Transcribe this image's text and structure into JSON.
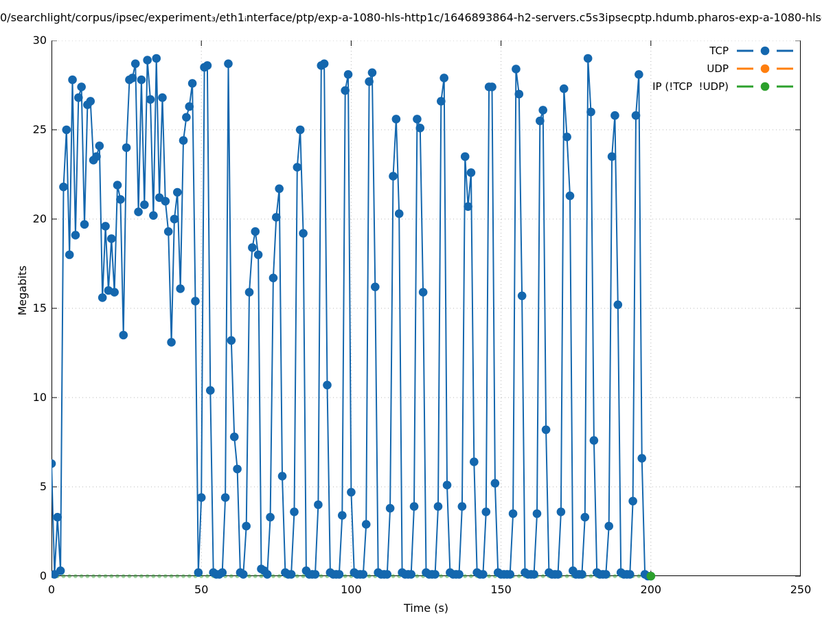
{
  "title": "0/searchlight/corpus/ipsec/experiment₃/eth1ᵢnterface/ptp/exp-a-1080-hls-http1c/1646893864-h2-servers.c5s3ipsecptp.hdumb.pharos-exp-a-1080-hls-",
  "axes": {
    "ylabel": "Megabits",
    "xlabel": "Time (s)",
    "yticks": [
      "0",
      "5",
      "10",
      "15",
      "20",
      "25",
      "30"
    ],
    "xticks": [
      "0",
      "50",
      "100",
      "150",
      "200",
      "250"
    ]
  },
  "legend": [
    {
      "label": "TCP",
      "color": "#1467ae"
    },
    {
      "label": "UDP",
      "color": "#ff7f0e"
    },
    {
      "label": "IP (!TCP  !UDP)",
      "color": "#2ca02c"
    }
  ],
  "colors": {
    "tcp": "#1467ae",
    "udp": "#ff7f0e",
    "ip": "#2ca02c",
    "grid": "#b5b5b5",
    "axis": "#000000"
  },
  "chart_data": {
    "type": "line",
    "title": "0/searchlight/corpus/ipsec/experiment₃/eth1ᵢnterface/ptp/exp-a-1080-hls-http1c/1646893864-h2-servers.c5s3ipsecptp.hdumb.pharos-exp-a-1080-hls-",
    "xlabel": "Time (s)",
    "ylabel": "Megabits",
    "xlim": [
      0,
      250
    ],
    "ylim": [
      0,
      30
    ],
    "xtick_values": [
      0,
      50,
      100,
      150,
      200,
      250
    ],
    "ytick_values": [
      0,
      5,
      10,
      15,
      20,
      25,
      30
    ],
    "grid": true,
    "legend_position": "top-right",
    "series": [
      {
        "name": "TCP",
        "style": "linespoints",
        "x_start": 0,
        "x_step": 1,
        "values": [
          6.3,
          0.1,
          3.3,
          0.3,
          21.8,
          25.0,
          18.0,
          27.8,
          19.1,
          26.8,
          27.4,
          19.7,
          26.4,
          26.6,
          23.3,
          23.5,
          24.1,
          15.6,
          19.6,
          16.0,
          18.9,
          15.9,
          21.9,
          21.1,
          13.5,
          24.0,
          27.8,
          27.9,
          28.7,
          20.4,
          27.8,
          20.8,
          28.9,
          26.7,
          20.2,
          29.0,
          21.2,
          26.8,
          21.0,
          19.3,
          13.1,
          20.0,
          21.5,
          16.1,
          24.4,
          25.7,
          26.3,
          27.6,
          15.4,
          0.2,
          4.4,
          28.5,
          28.6,
          10.4,
          0.2,
          0.1,
          0.1,
          0.2,
          4.4,
          28.7,
          13.2,
          7.8,
          6.0,
          0.2,
          0.1,
          2.8,
          15.9,
          18.4,
          19.3,
          18.0,
          0.4,
          0.3,
          0.1,
          3.3,
          16.7,
          20.1,
          21.7,
          5.6,
          0.2,
          0.1,
          0.1,
          3.6,
          22.9,
          25.0,
          19.2,
          0.3,
          0.1,
          0.1,
          0.1,
          4.0,
          28.6,
          28.7,
          10.7,
          0.2,
          0.1,
          0.1,
          0.1,
          3.4,
          27.2,
          28.1,
          4.7,
          0.2,
          0.1,
          0.1,
          0.1,
          2.9,
          27.7,
          28.2,
          16.2,
          0.2,
          0.1,
          0.1,
          0.1,
          3.8,
          22.4,
          25.6,
          20.3,
          0.2,
          0.1,
          0.1,
          0.1,
          3.9,
          25.6,
          25.1,
          15.9,
          0.2,
          0.1,
          0.1,
          0.1,
          3.9,
          26.6,
          27.9,
          5.1,
          0.2,
          0.1,
          0.1,
          0.1,
          3.9,
          23.5,
          20.7,
          22.6,
          6.4,
          0.2,
          0.1,
          0.1,
          3.6,
          27.4,
          27.4,
          5.2,
          0.2,
          0.1,
          0.1,
          0.1,
          0.1,
          3.5,
          28.4,
          27.0,
          15.7,
          0.2,
          0.1,
          0.1,
          0.1,
          3.5,
          25.5,
          26.1,
          8.2,
          0.2,
          0.1,
          0.1,
          0.1,
          3.6,
          27.3,
          24.6,
          21.3,
          0.3,
          0.1,
          0.1,
          0.1,
          3.3,
          29.0,
          26.0,
          7.6,
          0.2,
          0.1,
          0.1,
          0.1,
          2.8,
          23.5,
          25.8,
          15.2,
          0.2,
          0.1,
          0.1,
          0.1,
          4.2,
          25.8,
          28.1,
          6.6,
          0.1,
          0.0,
          0.0
        ]
      },
      {
        "name": "UDP",
        "style": "linespoints",
        "x_start": 0,
        "x_step": 2,
        "values": []
      },
      {
        "name": "IP (!TCP  !UDP)",
        "style": "linespoints",
        "x_start": 0,
        "x_step": 2,
        "x_end": 200,
        "constant_value": 0,
        "last_point": [
          200,
          0
        ]
      }
    ]
  }
}
